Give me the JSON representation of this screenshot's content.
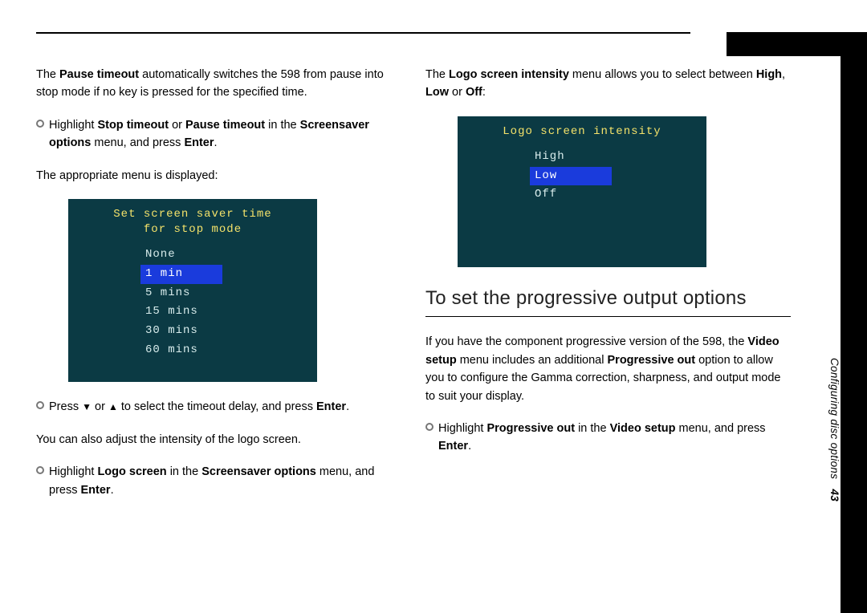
{
  "sidebar": {
    "section": "Configuring disc options",
    "page_number": "43"
  },
  "left": {
    "p1_a": "The ",
    "p1_b": "Pause timeout",
    "p1_c": " automatically switches the 598 from pause into stop mode if no key is pressed for the specified time.",
    "b1_a": "Highlight ",
    "b1_b": "Stop timeout",
    "b1_c": " or ",
    "b1_d": "Pause timeout",
    "b1_e": " in the ",
    "b1_f": "Screensaver options",
    "b1_g": " menu, and press ",
    "b1_h": "Enter",
    "b1_i": ".",
    "p2": "The appropriate menu is displayed:",
    "osd1_title": "Set screen saver time\nfor stop mode",
    "osd1_opts": [
      "None",
      "1 min",
      "5 mins",
      "15 mins",
      "30 mins",
      "60 mins"
    ],
    "osd1_selected_index": 1,
    "b2_a": "Press ",
    "b2_b": " or ",
    "b2_c": " to select the timeout delay, and press ",
    "b2_d": "Enter",
    "b2_e": ".",
    "p3": "You can also adjust the intensity of the logo screen.",
    "b3_a": "Highlight ",
    "b3_b": "Logo screen",
    "b3_c": " in the ",
    "b3_d": "Screensaver options",
    "b3_e": " menu, and press ",
    "b3_f": "Enter",
    "b3_g": "."
  },
  "right": {
    "p1_a": "The ",
    "p1_b": "Logo screen intensity",
    "p1_c": " menu allows you to select between ",
    "p1_d": "High",
    "p1_e": ", ",
    "p1_f": "Low",
    "p1_g": " or ",
    "p1_h": "Off",
    "p1_i": ":",
    "osd2_title": "Logo screen intensity",
    "osd2_opts": [
      "High",
      "Low",
      "Off"
    ],
    "osd2_selected_index": 1,
    "heading": "To set the progressive output options",
    "p2_a": "If you have the component progressive version of the 598, the ",
    "p2_b": "Video setup",
    "p2_c": " menu includes an additional ",
    "p2_d": "Progressive out",
    "p2_e": " option to allow you to configure the Gamma correction, sharpness, and output mode to suit your display.",
    "b1_a": "Highlight ",
    "b1_b": "Progressive out",
    "b1_c": " in the ",
    "b1_d": "Video setup",
    "b1_e": " menu, and press ",
    "b1_f": "Enter",
    "b1_g": "."
  },
  "style": {
    "osd_bg": "#0b3a44",
    "osd_title_color": "#f4e26a",
    "osd_text_color": "#d8ecec",
    "osd_sel_bg": "#1a3bdc"
  }
}
